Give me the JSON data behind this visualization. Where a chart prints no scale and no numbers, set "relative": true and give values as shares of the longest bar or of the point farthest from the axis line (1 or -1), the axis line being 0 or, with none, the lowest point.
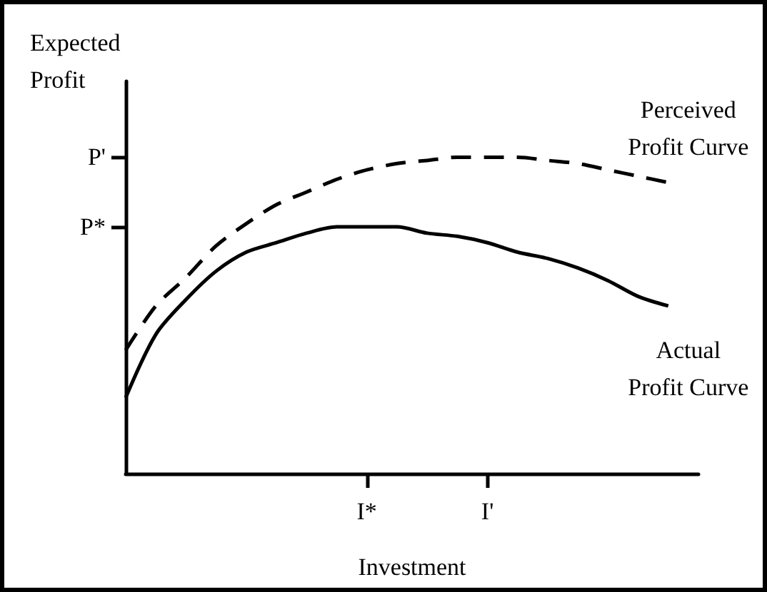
{
  "chart_data": {
    "type": "line",
    "relative": true,
    "xlabel": "Investment",
    "ylabel": "Expected Profit",
    "categories": [
      null,
      null,
      null,
      null,
      null,
      null,
      null,
      null,
      "I*",
      null,
      null,
      null,
      "I'",
      null,
      null,
      null,
      null,
      null,
      null,
      null
    ],
    "ylim": [
      0,
      1.24
    ],
    "ref_lines": [
      {
        "axis": "y",
        "value": 0.78,
        "label": "P*"
      },
      {
        "axis": "y",
        "value": 1.0,
        "label": "P'"
      }
    ],
    "series": [
      {
        "name": "Perceived Profit Curve",
        "color": "#000000",
        "line_style": "dashed",
        "values": [
          0.39,
          0.53,
          0.62,
          0.72,
          0.79,
          0.85,
          0.89,
          0.93,
          0.96,
          0.98,
          0.99,
          1.0,
          1.0,
          1.0,
          0.99,
          0.98,
          0.96,
          0.94,
          0.92,
          null
        ]
      },
      {
        "name": "Actual Profit Curve",
        "color": "#000000",
        "line_style": "solid",
        "values": [
          0.24,
          0.44,
          0.55,
          0.64,
          0.7,
          0.73,
          0.76,
          0.78,
          0.78,
          0.78,
          0.76,
          0.75,
          0.73,
          0.7,
          0.68,
          0.65,
          0.61,
          0.56,
          0.53,
          null
        ]
      }
    ],
    "grid": false,
    "legend": false,
    "marker": "none"
  }
}
